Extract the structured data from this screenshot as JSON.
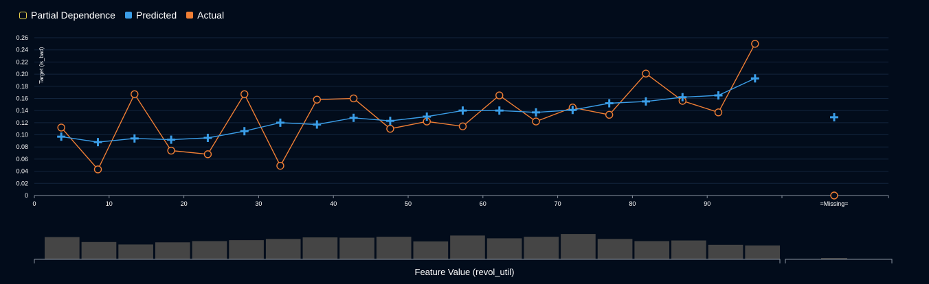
{
  "legend": [
    {
      "label": "Partial Dependence",
      "color": "#e8d44d",
      "key": "pd"
    },
    {
      "label": "Predicted",
      "color": "#3b9ee8",
      "key": "pred"
    },
    {
      "label": "Actual",
      "color": "#f07f35",
      "key": "act"
    }
  ],
  "chart_data": {
    "type": "line",
    "ylabel": "Target (is_bad)",
    "xlabel": "Feature Value (revol_util)",
    "ylim": [
      0,
      0.26
    ],
    "yticks": [
      "0",
      "0.02",
      "0.04",
      "0.06",
      "0.08",
      "0.10",
      "0.12",
      "0.14",
      "0.16",
      "0.18",
      "0.20",
      "0.22",
      "0.24",
      "0.26"
    ],
    "xlim": [
      0,
      100
    ],
    "xticks": [
      "0",
      "10",
      "20",
      "30",
      "40",
      "50",
      "60",
      "70",
      "80",
      "90"
    ],
    "missing_label": "=Missing=",
    "grid": true,
    "x": [
      3.6,
      8.5,
      13.4,
      18.3,
      23.2,
      28.1,
      32.9,
      37.8,
      42.7,
      47.6,
      52.5,
      57.3,
      62.2,
      67.1,
      72.0,
      76.9,
      81.8,
      86.7,
      91.5,
      96.4
    ],
    "series": [
      {
        "name": "Predicted",
        "color": "#3b9ee8",
        "values": [
          0.097,
          0.088,
          0.094,
          0.092,
          0.095,
          0.106,
          0.12,
          0.117,
          0.128,
          0.123,
          0.13,
          0.14,
          0.14,
          0.137,
          0.141,
          0.152,
          0.155,
          0.162,
          0.165,
          0.193
        ],
        "missing_value": 0.129
      },
      {
        "name": "Actual",
        "color": "#f07f35",
        "values": [
          0.112,
          0.043,
          0.167,
          0.074,
          0.068,
          0.167,
          0.049,
          0.158,
          0.16,
          0.11,
          0.122,
          0.114,
          0.165,
          0.122,
          0.145,
          0.133,
          0.201,
          0.156,
          0.137,
          0.25
        ],
        "missing_value": 0.0
      }
    ],
    "histogram": {
      "counts": [
        0.72,
        0.56,
        0.48,
        0.55,
        0.59,
        0.62,
        0.66,
        0.71,
        0.7,
        0.73,
        0.58,
        0.77,
        0.68,
        0.73,
        0.82,
        0.66,
        0.59,
        0.61,
        0.47,
        0.45
      ],
      "missing_count": 0.04,
      "color": "#454545"
    }
  }
}
